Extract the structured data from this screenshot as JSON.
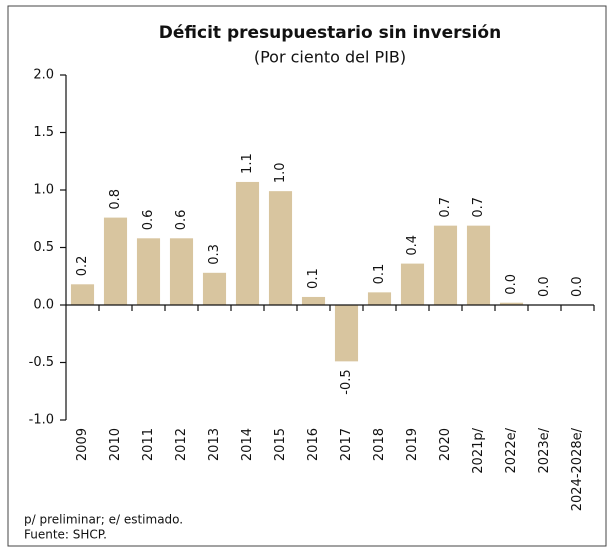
{
  "chart_data": {
    "type": "bar",
    "title": "Déficit presupuestario sin inversión",
    "subtitle": "(Por ciento del PIB)",
    "categories": [
      "2009",
      "2010",
      "2011",
      "2012",
      "2013",
      "2014",
      "2015",
      "2016",
      "2017",
      "2018",
      "2019",
      "2020",
      "2021p/",
      "2022e/",
      "2023e/",
      "2024-2028e/"
    ],
    "values": [
      0.18,
      0.76,
      0.58,
      0.58,
      0.28,
      1.07,
      0.99,
      0.07,
      -0.49,
      0.11,
      0.36,
      0.69,
      0.69,
      0.02,
      0,
      0
    ],
    "value_labels": [
      "0.2",
      "0.8",
      "0.6",
      "0.6",
      "0.3",
      "1.1",
      "1.0",
      "0.1",
      "-0.5",
      "0.1",
      "0.4",
      "0.7",
      "0.7",
      "0.0",
      "0.0",
      "0.0"
    ],
    "color": "#d8c59f",
    "ylim": [
      -1,
      2
    ],
    "yticks": [
      {
        "value": -1,
        "label": "-1.0"
      },
      -0.5,
      {
        "value": 0,
        "label": "0.0"
      },
      0.5,
      {
        "value": 1,
        "label": "1.0"
      },
      1.5,
      {
        "value": 2,
        "label": "2.0"
      }
    ],
    "grid": false,
    "footnotes": [
      "p/ preliminar;  e/ estimado.",
      "Fuente: SHCP."
    ]
  }
}
